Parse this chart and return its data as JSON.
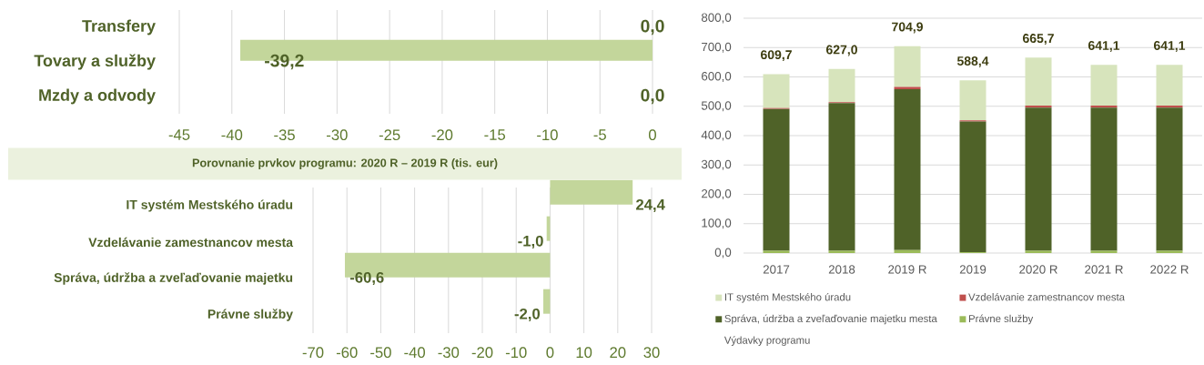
{
  "chart_data": [
    {
      "type": "bar",
      "orientation": "horizontal",
      "categories": [
        "Transfery",
        "Tovary a služby",
        "Mzdy a odvody"
      ],
      "values": [
        0,
        -39.2,
        0
      ],
      "value_labels": [
        "0,0",
        "-39,2",
        "0,0"
      ],
      "color": "#c3d69b",
      "xlim": [
        -45,
        0
      ],
      "xticks": [
        -45,
        -40,
        -35,
        -30,
        -25,
        -20,
        -15,
        -10,
        -5,
        0
      ],
      "grid": "x"
    },
    {
      "type": "bar",
      "orientation": "horizontal",
      "title": "Porovnanie prvkov programu: 2020 R – 2019 R (tis. eur)",
      "categories": [
        "IT systém Mestského úradu",
        "Vzdelávanie zamestnancov mesta",
        "Správa, údržba a zveľaďovanie majetku",
        "Právne služby"
      ],
      "values": [
        24.4,
        -1.0,
        -60.6,
        -2.0
      ],
      "value_labels": [
        "24,4",
        "-1,0",
        "-60,6",
        "-2,0"
      ],
      "color": "#c3d69b",
      "xlim": [
        -70,
        30
      ],
      "xticks": [
        -70,
        -60,
        -50,
        -40,
        -30,
        -20,
        -10,
        0,
        10,
        20,
        30
      ],
      "grid": "x"
    },
    {
      "type": "bar",
      "stacked": true,
      "categories": [
        "2017",
        "2018",
        "2019 R",
        "2019",
        "2020 R",
        "2021 R",
        "2022 R"
      ],
      "series": [
        {
          "name": "Právne služby",
          "color": "#9bbb59",
          "values": [
            8,
            8,
            10,
            3,
            8,
            8,
            8
          ]
        },
        {
          "name": "Správa, údržba a zveľaďovanie majetku mesta",
          "color": "#4f6228",
          "values": [
            483,
            503,
            548,
            445,
            487.4,
            487.4,
            487.4
          ]
        },
        {
          "name": "Vzdelávanie zamestnancov mesta",
          "color": "#c0504d",
          "values": [
            3,
            3,
            8,
            4,
            7,
            7,
            7
          ]
        },
        {
          "name": "IT systém Mestského úradu",
          "color": "#d7e4bc",
          "values": [
            115.7,
            113,
            138.9,
            136.4,
            163.3,
            138.7,
            138.7
          ]
        }
      ],
      "totals": [
        "609,7",
        "627,0",
        "704,9",
        "588,4",
        "665,7",
        "641,1",
        "641,1"
      ],
      "ylim": [
        0,
        800
      ],
      "yticks": [
        {
          "value": 0,
          "label": "0,0"
        },
        {
          "value": 100,
          "label": "100,0"
        },
        {
          "value": 200,
          "label": "200,0"
        },
        {
          "value": 300,
          "label": "300,0"
        },
        {
          "value": 400,
          "label": "400,0"
        },
        {
          "value": 500,
          "label": "500,0"
        },
        {
          "value": 600,
          "label": "600,0"
        },
        {
          "value": 700,
          "label": "700,0"
        },
        {
          "value": 800,
          "label": "800,0"
        }
      ],
      "grid": "y",
      "legend": "bottom",
      "annotations": [
        "Výdavky programu"
      ]
    }
  ]
}
